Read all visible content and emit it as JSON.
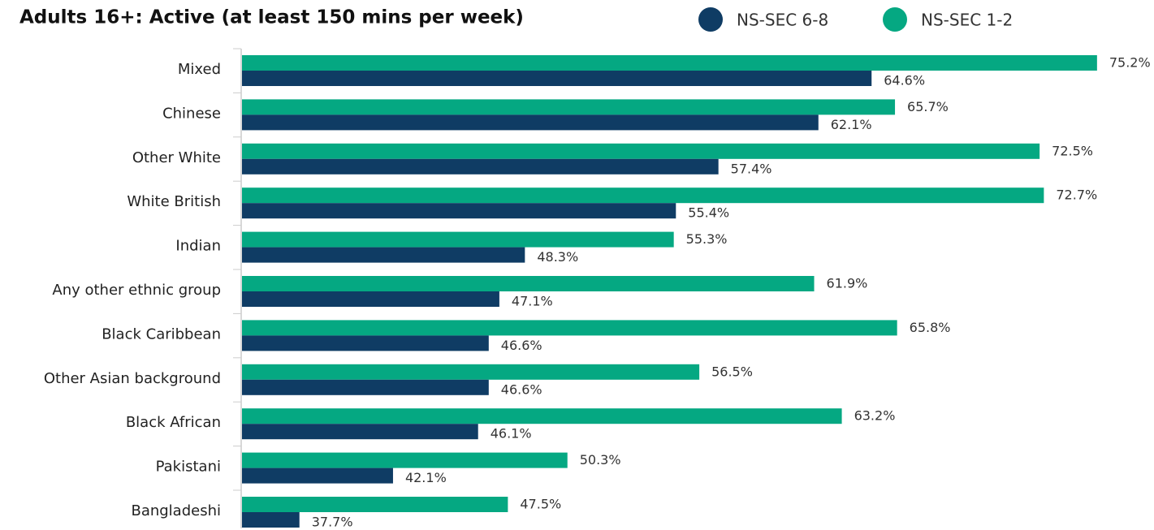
{
  "chart_data": {
    "type": "hbar",
    "title": "Adults 16+: Active (at least 150 mins per week)",
    "categories": [
      "Mixed",
      "Chinese",
      "Other White",
      "White British",
      "Indian",
      "Any other ethnic group",
      "Black Caribbean",
      "Other Asian background",
      "Black African",
      "Pakistani",
      "Bangladeshi"
    ],
    "series": [
      {
        "name": "NS-SEC 6-8",
        "color": "#0f3c64",
        "values": [
          64.6,
          62.1,
          57.4,
          55.4,
          48.3,
          47.1,
          46.6,
          46.6,
          46.1,
          42.1,
          37.7
        ],
        "value_labels": [
          "64.6%",
          "62.1%",
          "57.4%",
          "55.4%",
          "48.3%",
          "47.1%",
          "46.6%",
          "46.6%",
          "46.1%",
          "42.1%",
          "37.7%"
        ]
      },
      {
        "name": "NS-SEC 1-2",
        "color": "#05a882",
        "values": [
          75.2,
          65.7,
          72.5,
          72.7,
          55.3,
          61.9,
          65.8,
          56.5,
          63.2,
          50.3,
          47.5
        ],
        "value_labels": [
          "75.2%",
          "65.7%",
          "72.5%",
          "72.7%",
          "55.3%",
          "61.9%",
          "65.8%",
          "56.5%",
          "63.2%",
          "50.3%",
          "47.5%"
        ]
      }
    ],
    "xlim": [
      35,
      77
    ],
    "legend": "top-right"
  }
}
